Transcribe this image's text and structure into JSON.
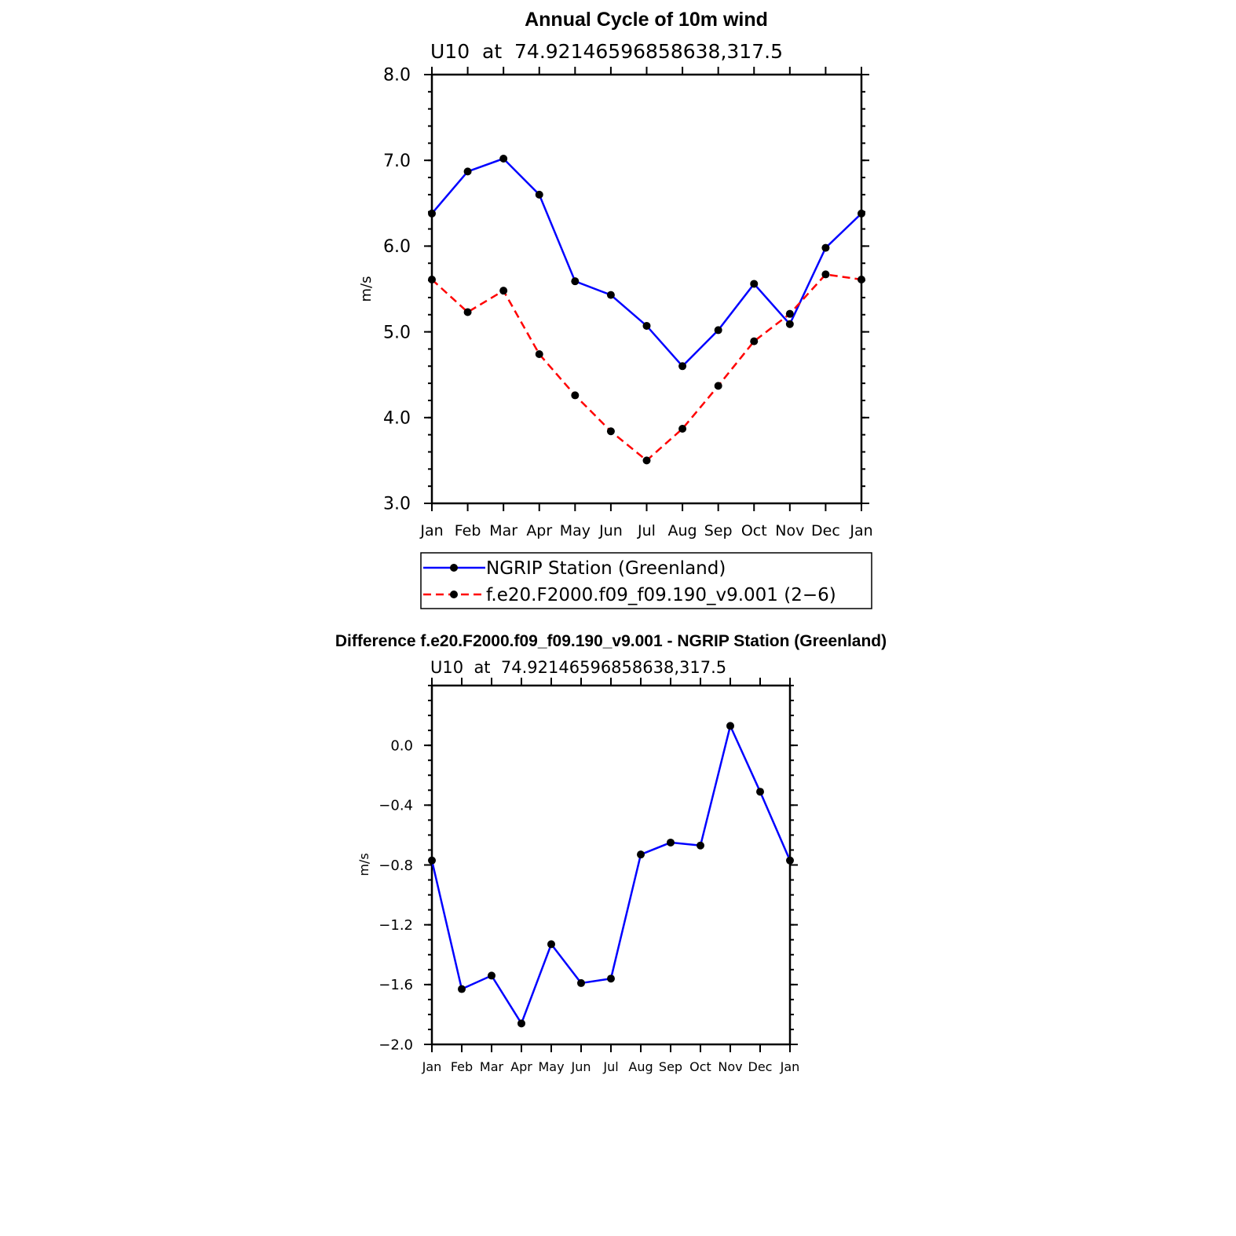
{
  "chart_data": [
    {
      "type": "line",
      "title": "Annual Cycle of 10m wind",
      "subtitle": "U10  at  74.92146596858638,317.5",
      "ylabel": "m/s",
      "xlabel": "",
      "ylim": [
        3.0,
        8.0
      ],
      "yticks": [
        "3.0",
        "4.0",
        "5.0",
        "6.0",
        "7.0",
        "8.0"
      ],
      "categories": [
        "Jan",
        "Feb",
        "Mar",
        "Apr",
        "May",
        "Jun",
        "Jul",
        "Aug",
        "Sep",
        "Oct",
        "Nov",
        "Dec",
        "Jan"
      ],
      "grid": false,
      "legend_position": "bottom",
      "series": [
        {
          "name": "NGRIP Station (Greenland)",
          "color": "#0000ff",
          "dash": "solid",
          "values": [
            6.38,
            6.87,
            7.02,
            6.6,
            5.59,
            5.43,
            5.07,
            4.6,
            5.02,
            5.56,
            5.09,
            5.98,
            6.38
          ]
        },
        {
          "name": "f.e20.F2000.f09_f09.190_v9.001 (2−6)",
          "color": "#ff0000",
          "dash": "dashed",
          "values": [
            5.61,
            5.23,
            5.48,
            4.74,
            4.26,
            3.84,
            3.5,
            3.87,
            4.37,
            4.89,
            5.21,
            5.67,
            5.61
          ]
        }
      ]
    },
    {
      "type": "line",
      "title": "Difference f.e20.F2000.f09_f09.190_v9.001 - NGRIP Station (Greenland)",
      "subtitle": "U10  at  74.92146596858638,317.5",
      "ylabel": "m/s",
      "xlabel": "",
      "ylim": [
        -2.0,
        0.4
      ],
      "yticks": [
        "−2.0",
        "−1.6",
        "−1.2",
        "−0.8",
        "−0.4",
        "0.0"
      ],
      "categories": [
        "Jan",
        "Feb",
        "Mar",
        "Apr",
        "May",
        "Jun",
        "Jul",
        "Aug",
        "Sep",
        "Oct",
        "Nov",
        "Dec",
        "Jan"
      ],
      "grid": false,
      "series": [
        {
          "color": "#0000ff",
          "dash": "solid",
          "values": [
            -0.77,
            -1.63,
            -1.54,
            -1.86,
            -1.33,
            -1.59,
            -1.56,
            -0.73,
            -0.65,
            -0.67,
            0.13,
            -0.31,
            -0.77
          ]
        }
      ]
    }
  ]
}
